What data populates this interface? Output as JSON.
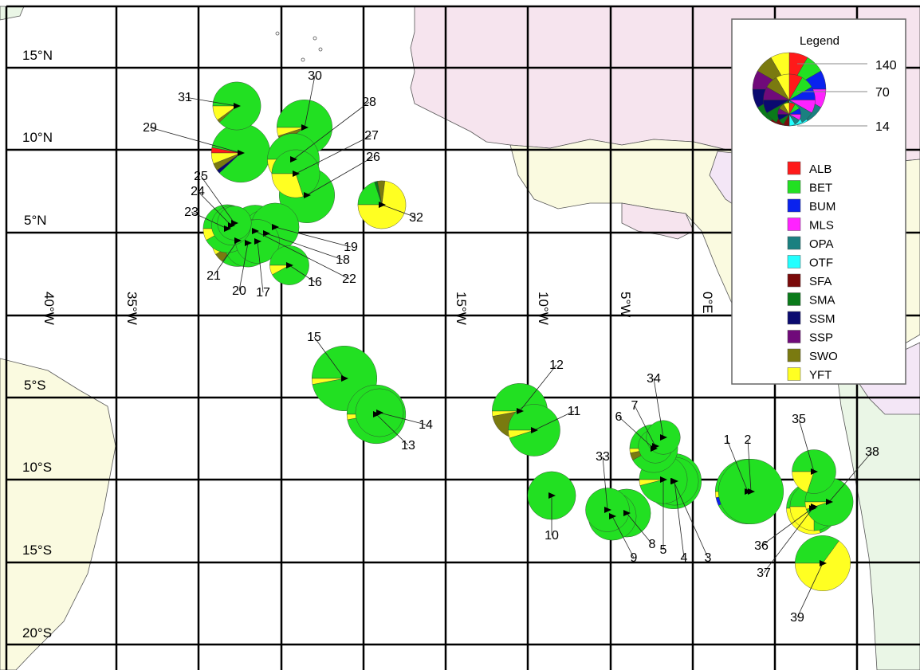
{
  "lat_labels": [
    "15°N",
    "10°N",
    "5°N",
    "5°S",
    "10°S",
    "15°S",
    "20°S"
  ],
  "lon_labels": [
    "40°W",
    "35°W",
    "15°W",
    "10°W",
    "5°W",
    "0°E"
  ],
  "legend": {
    "title": "Legend",
    "size_values": [
      "140",
      "70",
      "14"
    ],
    "species": [
      {
        "code": "ALB",
        "color": "#ff1a1a"
      },
      {
        "code": "BET",
        "color": "#22e022"
      },
      {
        "code": "BUM",
        "color": "#0a22ee"
      },
      {
        "code": "MLS",
        "color": "#ff22ff"
      },
      {
        "code": "OPA",
        "color": "#1a8080"
      },
      {
        "code": "OTF",
        "color": "#22ffff"
      },
      {
        "code": "SFA",
        "color": "#7a0a0a"
      },
      {
        "code": "SMA",
        "color": "#0a7a1a"
      },
      {
        "code": "SSM",
        "color": "#0a0a70"
      },
      {
        "code": "SSP",
        "color": "#700a7a"
      },
      {
        "code": "SWO",
        "color": "#7a7a10"
      },
      {
        "code": "YFT",
        "color": "#ffff22"
      }
    ]
  },
  "sites": [
    {
      "label": "1",
      "total": 110,
      "comp": {
        "BET": 0.93,
        "BUM": 0.04,
        "YFT": 0.03
      }
    },
    {
      "label": "2",
      "total": 110,
      "comp": {
        "BET": 1.0
      }
    },
    {
      "label": "3",
      "total": 80,
      "comp": {
        "BET": 1.0
      }
    },
    {
      "label": "4",
      "total": 60,
      "comp": {
        "BET": 0.97,
        "YFT": 0.03
      }
    },
    {
      "label": "5",
      "total": 60,
      "comp": {
        "BET": 0.96,
        "YFT": 0.04
      }
    },
    {
      "label": "6",
      "total": 60,
      "comp": {
        "BET": 0.92,
        "SWO": 0.05,
        "YFT": 0.03
      }
    },
    {
      "label": "7",
      "total": 30,
      "comp": {
        "BET": 1.0
      }
    },
    {
      "label": "8",
      "total": 60,
      "comp": {
        "BET": 1.0
      }
    },
    {
      "label": "9",
      "total": 60,
      "comp": {
        "BET": 1.0
      }
    },
    {
      "label": "10",
      "total": 60,
      "comp": {
        "BET": 1.0
      }
    },
    {
      "label": "11",
      "total": 70,
      "comp": {
        "BET": 0.95,
        "YFT": 0.05
      }
    },
    {
      "label": "12",
      "total": 80,
      "comp": {
        "BET": 0.72,
        "SWO": 0.25,
        "YFT": 0.03
      }
    },
    {
      "label": "13",
      "total": 90,
      "comp": {
        "BET": 0.97,
        "YFT": 0.03
      }
    },
    {
      "label": "14",
      "total": 60,
      "comp": {
        "BET": 1.0
      }
    },
    {
      "label": "15",
      "total": 110,
      "comp": {
        "BET": 0.97,
        "YFT": 0.03
      }
    },
    {
      "label": "16",
      "total": 40,
      "comp": {
        "BET": 0.92,
        "YFT": 0.08
      }
    },
    {
      "label": "17",
      "total": 50,
      "comp": {
        "BET": 1.0
      }
    },
    {
      "label": "18",
      "total": 60,
      "comp": {
        "BET": 1.0
      }
    },
    {
      "label": "19",
      "total": 60,
      "comp": {
        "BET": 1.0
      }
    },
    {
      "label": "20",
      "total": 60,
      "comp": {
        "BET": 0.97,
        "SSM": 0.03
      }
    },
    {
      "label": "21",
      "total": 70,
      "comp": {
        "BET": 0.85,
        "SWO": 0.06,
        "YFT": 0.09
      }
    },
    {
      "label": "22",
      "total": 70,
      "comp": {
        "BET": 1.0
      }
    },
    {
      "label": "23",
      "total": 60,
      "comp": {
        "BET": 0.92,
        "YFT": 0.08
      }
    },
    {
      "label": "24",
      "total": 40,
      "comp": {
        "BET": 1.0
      }
    },
    {
      "label": "25",
      "total": 30,
      "comp": {
        "BET": 1.0
      }
    },
    {
      "label": "26",
      "total": 80,
      "comp": {
        "BET": 1.0
      }
    },
    {
      "label": "27",
      "total": 60,
      "comp": {
        "BET": 0.7,
        "YFT": 0.3
      }
    },
    {
      "label": "28",
      "total": 70,
      "comp": {
        "BET": 0.6,
        "YFT": 0.4
      }
    },
    {
      "label": "29",
      "total": 90,
      "comp": {
        "BET": 0.85,
        "ALB": 0.03,
        "SWO": 0.04,
        "SSM": 0.02,
        "YFT": 0.06
      }
    },
    {
      "label": "30",
      "total": 80,
      "comp": {
        "BET": 0.9,
        "SWO": 0.05,
        "YFT": 0.05
      }
    },
    {
      "label": "31",
      "total": 60,
      "comp": {
        "BET": 0.88,
        "SWO": 0.02,
        "YFT": 0.1
      }
    },
    {
      "label": "32",
      "total": 60,
      "comp": {
        "BET": 0.2,
        "SWO": 0.05,
        "SMA": 0.02,
        "YFT": 0.73
      }
    },
    {
      "label": "33",
      "total": 50,
      "comp": {
        "BET": 1.0
      }
    },
    {
      "label": "34",
      "total": 30,
      "comp": {
        "BET": 1.0
      }
    },
    {
      "label": "35",
      "total": 50,
      "comp": {
        "BET": 0.8,
        "YFT": 0.2
      }
    },
    {
      "label": "36",
      "total": 70,
      "comp": {
        "BET": 0.7,
        "YFT": 0.3
      }
    },
    {
      "label": "37",
      "total": 60,
      "comp": {
        "BET": 0.75,
        "YFT": 0.25
      }
    },
    {
      "label": "38",
      "total": 60,
      "comp": {
        "BET": 0.95,
        "YFT": 0.05
      }
    },
    {
      "label": "39",
      "total": 80,
      "comp": {
        "BET": 0.35,
        "YFT": 0.65
      }
    }
  ]
}
